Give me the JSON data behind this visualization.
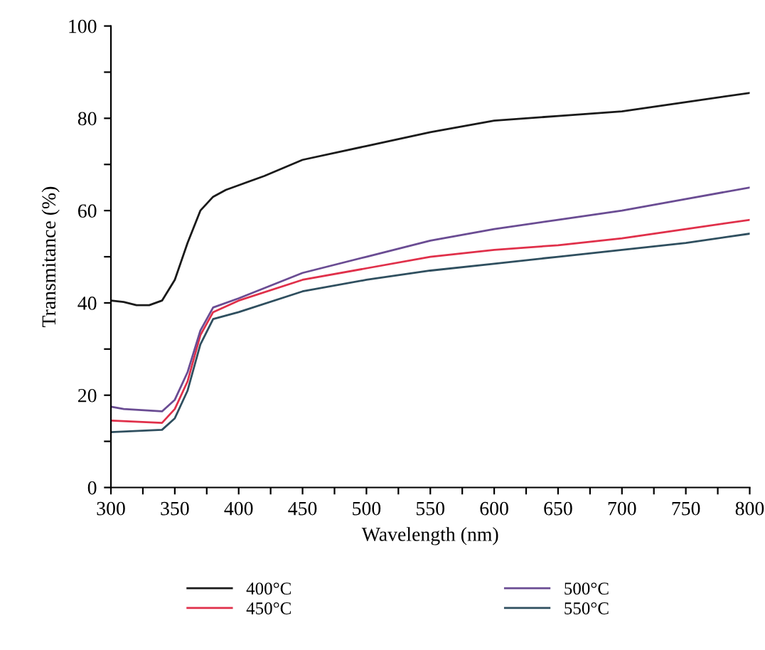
{
  "chart_data": {
    "type": "line",
    "xlabel": "Wavelength (nm)",
    "ylabel": "Transmitance (%)",
    "xlim": [
      300,
      800
    ],
    "ylim": [
      0,
      100
    ],
    "xticks": [
      300,
      {
        "value": 325,
        "label": null
      },
      350,
      {
        "value": 375,
        "label": null
      },
      400,
      {
        "value": 425,
        "label": null
      },
      450,
      {
        "value": 475,
        "label": null
      },
      500,
      {
        "value": 525,
        "label": null
      },
      550,
      {
        "value": 575,
        "label": null
      },
      600,
      {
        "value": 625,
        "label": null
      },
      650,
      {
        "value": 675,
        "label": null
      },
      700,
      {
        "value": 725,
        "label": null
      },
      750,
      {
        "value": 775,
        "label": null
      },
      800
    ],
    "yticks": [
      0,
      {
        "value": 10,
        "label": null
      },
      20,
      {
        "value": 30,
        "label": null
      },
      40,
      {
        "value": 50,
        "label": null
      },
      60,
      {
        "value": 70,
        "label": null
      },
      80,
      {
        "value": 90,
        "label": null
      },
      100
    ],
    "grid": false,
    "legend": "bottom",
    "line_style": "solid",
    "marker": "none",
    "series": [
      {
        "name": "400°C",
        "color": "#1a1a1a",
        "x": [
          300,
          310,
          320,
          330,
          340,
          350,
          360,
          370,
          380,
          390,
          400,
          420,
          450,
          500,
          550,
          600,
          650,
          700,
          750,
          800
        ],
        "values": [
          40.5,
          40.2,
          39.5,
          39.5,
          40.5,
          45,
          53,
          60,
          63,
          64.5,
          65.5,
          67.5,
          71,
          74,
          77,
          79.5,
          80.5,
          81.5,
          83.5,
          85.5
        ]
      },
      {
        "name": "450°C",
        "color": "#e0304a",
        "x": [
          300,
          340,
          350,
          360,
          370,
          380,
          400,
          450,
          500,
          550,
          600,
          650,
          700,
          750,
          800
        ],
        "values": [
          14.5,
          14,
          17,
          23,
          33,
          38,
          40.5,
          45,
          47.5,
          50,
          51.5,
          52.5,
          54,
          56,
          58
        ]
      },
      {
        "name": "500°C",
        "color": "#6a4c93",
        "x": [
          300,
          310,
          340,
          350,
          360,
          370,
          380,
          400,
          450,
          500,
          550,
          600,
          650,
          700,
          750,
          800
        ],
        "values": [
          17.5,
          17,
          16.5,
          19,
          25,
          34,
          39,
          41,
          46.5,
          50,
          53.5,
          56,
          58,
          60,
          62.5,
          65
        ]
      },
      {
        "name": "550°C",
        "color": "#2f4f5f",
        "x": [
          300,
          340,
          350,
          360,
          370,
          380,
          400,
          450,
          500,
          550,
          600,
          650,
          700,
          750,
          800
        ],
        "values": [
          12,
          12.5,
          15,
          21,
          31,
          36.5,
          38,
          42.5,
          45,
          47,
          48.5,
          50,
          51.5,
          53,
          55
        ]
      }
    ]
  }
}
